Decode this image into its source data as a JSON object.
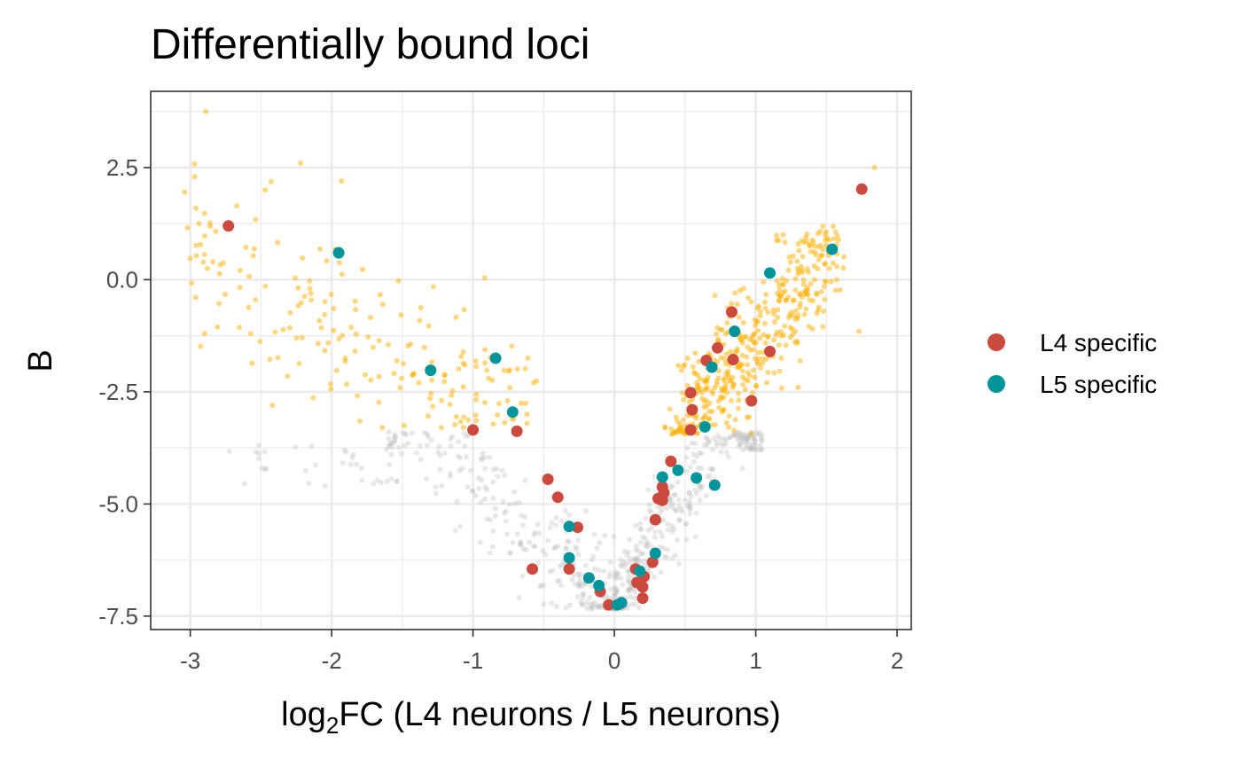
{
  "chart_data": {
    "type": "scatter",
    "title": "Differentially bound loci",
    "xlabel": {
      "prefix": "log",
      "subscript": "2",
      "suffix": "FC (L4 neurons / L5 neurons)"
    },
    "ylabel": "B",
    "xlim": [
      -3.28,
      2.1
    ],
    "ylim": [
      -7.8,
      4.2
    ],
    "x_ticks": [
      -3,
      -2,
      -1,
      0,
      1,
      2
    ],
    "x_tick_labels": [
      "-3",
      "-2",
      "-1",
      "0",
      "1",
      "2"
    ],
    "y_ticks": [
      2.5,
      0.0,
      -2.5,
      -5.0,
      -7.5
    ],
    "y_tick_labels": [
      "2.5",
      "0.0",
      "-2.5",
      "-5.0",
      "-7.5"
    ],
    "grid": true,
    "legend_position": "right",
    "colors": {
      "background_points": "#bdbdbd",
      "significant_points": "#ffb000",
      "l4_specific": "#cc4a3d",
      "l5_specific": "#00959b",
      "grid": "#ebebeb",
      "panel_border": "#333333"
    },
    "series": [
      {
        "name": "L4 specific",
        "color": "#cc4a3d",
        "points": [
          [
            -2.73,
            1.2
          ],
          [
            -1.0,
            -3.35
          ],
          [
            -0.69,
            -3.38
          ],
          [
            -0.47,
            -4.45
          ],
          [
            -0.4,
            -4.85
          ],
          [
            -0.58,
            -6.45
          ],
          [
            -0.32,
            -6.45
          ],
          [
            -0.26,
            -5.52
          ],
          [
            -0.1,
            -6.95
          ],
          [
            -0.04,
            -7.25
          ],
          [
            0.04,
            -7.22
          ],
          [
            0.15,
            -6.45
          ],
          [
            0.21,
            -6.62
          ],
          [
            0.16,
            -6.75
          ],
          [
            0.2,
            -6.85
          ],
          [
            0.2,
            -7.1
          ],
          [
            0.27,
            -6.3
          ],
          [
            0.29,
            -5.35
          ],
          [
            0.31,
            -4.88
          ],
          [
            0.34,
            -4.62
          ],
          [
            0.35,
            -4.75
          ],
          [
            0.34,
            -4.92
          ],
          [
            0.4,
            -4.05
          ],
          [
            0.54,
            -3.35
          ],
          [
            0.55,
            -2.9
          ],
          [
            0.54,
            -2.52
          ],
          [
            0.65,
            -1.8
          ],
          [
            0.73,
            -1.52
          ],
          [
            0.84,
            -1.78
          ],
          [
            0.83,
            -0.72
          ],
          [
            0.97,
            -2.7
          ],
          [
            1.1,
            -1.6
          ],
          [
            1.75,
            2.02
          ]
        ]
      },
      {
        "name": "L5 specific",
        "color": "#00959b",
        "points": [
          [
            -1.95,
            0.6
          ],
          [
            -1.3,
            -2.02
          ],
          [
            -0.84,
            -1.75
          ],
          [
            -0.72,
            -2.95
          ],
          [
            -0.32,
            -5.5
          ],
          [
            -0.32,
            -6.2
          ],
          [
            -0.18,
            -6.65
          ],
          [
            -0.11,
            -6.82
          ],
          [
            0.02,
            -7.25
          ],
          [
            0.05,
            -7.2
          ],
          [
            0.18,
            -6.5
          ],
          [
            0.29,
            -6.1
          ],
          [
            0.34,
            -4.4
          ],
          [
            0.45,
            -4.25
          ],
          [
            0.58,
            -4.42
          ],
          [
            0.64,
            -3.28
          ],
          [
            0.69,
            -1.95
          ],
          [
            0.71,
            -4.58
          ],
          [
            0.85,
            -1.15
          ],
          [
            1.1,
            0.15
          ],
          [
            1.54,
            0.68
          ]
        ]
      }
    ]
  }
}
